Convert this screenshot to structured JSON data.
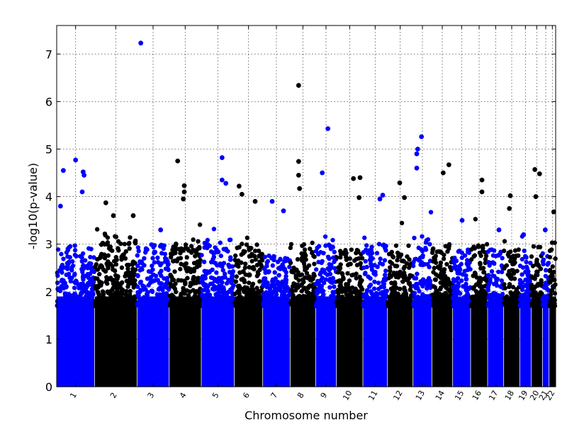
{
  "chart_data": {
    "type": "scatter",
    "title": "",
    "xlabel": "Chromosome number",
    "ylabel": "-log10(p-value)",
    "ylim": [
      0,
      7.6
    ],
    "y_ticks": [
      "0",
      "1",
      "2",
      "3",
      "4",
      "5",
      "6",
      "7"
    ],
    "grid": true,
    "legend": "none",
    "colors": {
      "odd": "#0000ff",
      "even": "#000000"
    },
    "chromosomes": [
      {
        "label": "1",
        "span": [
          0,
          40
        ],
        "base_max": 3.0,
        "peaks": [
          {
            "x": 4,
            "y": 3.8
          },
          {
            "x": 7,
            "y": 4.55
          },
          {
            "x": 20,
            "y": 4.77
          },
          {
            "x": 28,
            "y": 4.52
          },
          {
            "x": 29,
            "y": 4.45
          },
          {
            "x": 27,
            "y": 4.1
          }
        ]
      },
      {
        "label": "2",
        "span": [
          40,
          85
        ],
        "base_max": 3.2,
        "peaks": [
          {
            "x": 52,
            "y": 3.87
          },
          {
            "x": 60,
            "y": 3.6
          },
          {
            "x": 81,
            "y": 3.6
          }
        ]
      },
      {
        "label": "3",
        "span": [
          85,
          119
        ],
        "base_max": 3.0,
        "peaks": [
          {
            "x": 89,
            "y": 7.23
          },
          {
            "x": 110,
            "y": 3.3
          }
        ]
      },
      {
        "label": "4",
        "span": [
          119,
          153
        ],
        "base_max": 3.0,
        "peaks": [
          {
            "x": 128,
            "y": 4.75
          },
          {
            "x": 135,
            "y": 4.23
          },
          {
            "x": 135,
            "y": 4.1
          },
          {
            "x": 134,
            "y": 3.95
          }
        ]
      },
      {
        "label": "5",
        "span": [
          153,
          188
        ],
        "base_max": 3.1,
        "peaks": [
          {
            "x": 175,
            "y": 4.82
          },
          {
            "x": 175,
            "y": 4.35
          },
          {
            "x": 179,
            "y": 4.28
          }
        ]
      },
      {
        "label": "6",
        "span": [
          188,
          218
        ],
        "base_max": 3.0,
        "peaks": [
          {
            "x": 193,
            "y": 4.22
          },
          {
            "x": 196,
            "y": 4.05
          },
          {
            "x": 210,
            "y": 3.9
          }
        ]
      },
      {
        "label": "7",
        "span": [
          218,
          247
        ],
        "base_max": 2.8,
        "peaks": [
          {
            "x": 228,
            "y": 3.9
          },
          {
            "x": 240,
            "y": 3.7
          }
        ]
      },
      {
        "label": "8",
        "span": [
          247,
          274
        ],
        "base_max": 3.0,
        "peaks": [
          {
            "x": 256,
            "y": 6.34
          },
          {
            "x": 256,
            "y": 4.74
          },
          {
            "x": 256,
            "y": 4.45
          },
          {
            "x": 257,
            "y": 4.17
          }
        ]
      },
      {
        "label": "9",
        "span": [
          274,
          296
        ],
        "base_max": 3.0,
        "peaks": [
          {
            "x": 281,
            "y": 4.5
          },
          {
            "x": 287,
            "y": 5.43
          }
        ]
      },
      {
        "label": "10",
        "span": [
          296,
          324
        ],
        "base_max": 2.9,
        "peaks": [
          {
            "x": 314,
            "y": 4.38
          },
          {
            "x": 321,
            "y": 4.4
          },
          {
            "x": 320,
            "y": 3.98
          }
        ]
      },
      {
        "label": "11",
        "span": [
          324,
          350
        ],
        "base_max": 3.0,
        "peaks": [
          {
            "x": 342,
            "y": 3.95
          },
          {
            "x": 345,
            "y": 4.03
          }
        ]
      },
      {
        "label": "12",
        "span": [
          350,
          377
        ],
        "base_max": 3.0,
        "peaks": [
          {
            "x": 363,
            "y": 4.29
          },
          {
            "x": 368,
            "y": 3.98
          }
        ]
      },
      {
        "label": "13",
        "span": [
          377,
          397
        ],
        "base_max": 3.2,
        "peaks": [
          {
            "x": 386,
            "y": 5.26
          },
          {
            "x": 382,
            "y": 5.0
          },
          {
            "x": 381,
            "y": 4.9
          },
          {
            "x": 381,
            "y": 4.6
          }
        ]
      },
      {
        "label": "14",
        "span": [
          397,
          419
        ],
        "base_max": 3.0,
        "peaks": [
          {
            "x": 409,
            "y": 4.5
          },
          {
            "x": 415,
            "y": 4.67
          }
        ]
      },
      {
        "label": "15",
        "span": [
          419,
          438
        ],
        "base_max": 2.9,
        "peaks": [
          {
            "x": 429,
            "y": 3.5
          }
        ]
      },
      {
        "label": "16",
        "span": [
          438,
          456
        ],
        "base_max": 3.0,
        "peaks": [
          {
            "x": 450,
            "y": 4.35
          },
          {
            "x": 450,
            "y": 4.1
          }
        ]
      },
      {
        "label": "17",
        "span": [
          456,
          473
        ],
        "base_max": 2.9,
        "peaks": [
          {
            "x": 468,
            "y": 3.3
          }
        ]
      },
      {
        "label": "18",
        "span": [
          473,
          490
        ],
        "base_max": 2.9,
        "peaks": [
          {
            "x": 480,
            "y": 4.02
          },
          {
            "x": 479,
            "y": 3.75
          }
        ]
      },
      {
        "label": "19",
        "span": [
          490,
          502
        ],
        "base_max": 2.8,
        "peaks": [
          {
            "x": 494,
            "y": 3.2
          }
        ]
      },
      {
        "label": "20",
        "span": [
          502,
          514
        ],
        "base_max": 3.0,
        "peaks": [
          {
            "x": 506,
            "y": 4.57
          },
          {
            "x": 511,
            "y": 4.48
          },
          {
            "x": 507,
            "y": 4.0
          }
        ]
      },
      {
        "label": "21",
        "span": [
          514,
          521
        ],
        "base_max": 2.9,
        "peaks": [
          {
            "x": 517,
            "y": 3.3
          }
        ]
      },
      {
        "label": "22",
        "span": [
          521,
          528
        ],
        "base_max": 3.1,
        "peaks": [
          {
            "x": 526,
            "y": 3.68
          }
        ]
      }
    ]
  }
}
